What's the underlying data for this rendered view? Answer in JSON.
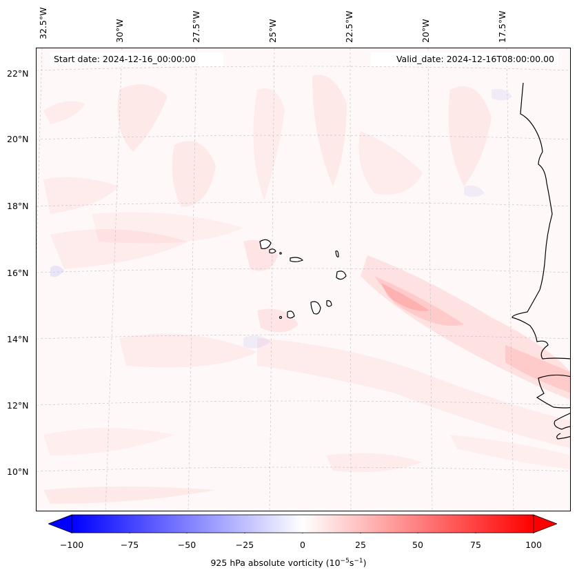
{
  "map": {
    "start_date_label": "Start date: 2024-12-16_00:00:00",
    "valid_date_label": "Valid_date: 2024-12-16T08:00:00.00",
    "longitude_labels": [
      "32.5°W",
      "30°W",
      "27.5°W",
      "25°W",
      "22.5°W",
      "20°W",
      "17.5°W"
    ],
    "latitude_labels": [
      "22°N",
      "20°N",
      "18°N",
      "16°N",
      "14°N",
      "12°N",
      "10°N"
    ],
    "features": [
      "Cabo Verde islands",
      "West African coastline"
    ]
  },
  "colorbar": {
    "ticks": [
      "−100",
      "−75",
      "−50",
      "−25",
      "0",
      "25",
      "50",
      "75",
      "100"
    ],
    "label_main": "925 hPa absolute vorticity (10",
    "label_exp1": "−5",
    "label_mid": "s",
    "label_exp2": "−1",
    "label_end": ")",
    "min": -100,
    "max": 100,
    "colors": {
      "negative": "#0000ff",
      "zero": "#ffffff",
      "positive": "#ff0000"
    }
  }
}
